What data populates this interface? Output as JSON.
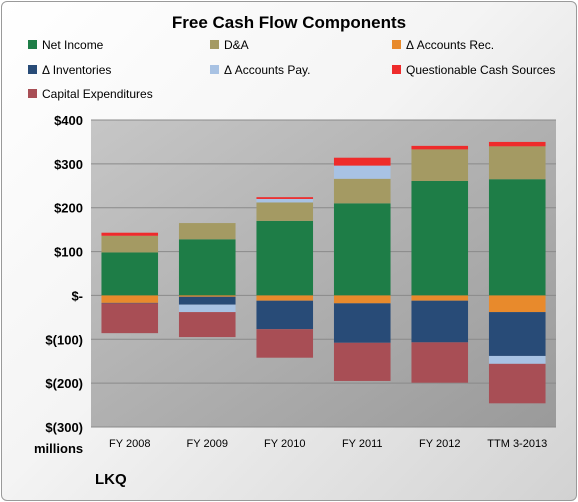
{
  "chart_data": {
    "type": "bar",
    "stacked": true,
    "title": "Free Cash Flow Components",
    "units_label": "millions",
    "footer": "LKQ",
    "categories": [
      "FY 2008",
      "FY 2009",
      "FY 2010",
      "FY 2011",
      "FY 2012",
      "TTM 3-2013"
    ],
    "ylim": [
      -300,
      400
    ],
    "yticks": [
      -300,
      -200,
      -100,
      0,
      100,
      200,
      300,
      400
    ],
    "ytick_labels": [
      "$(300)",
      "$(200)",
      "$(100)",
      "$-",
      "$100",
      "$200",
      "$300",
      "$400"
    ],
    "grid": true,
    "legend_position": "top",
    "series": [
      {
        "name": "Net Income",
        "color": "#1e7d47",
        "values": [
          98,
          128,
          170,
          210,
          261,
          265
        ]
      },
      {
        "name": "D&A",
        "color": "#a49a63",
        "values": [
          38,
          37,
          42,
          56,
          72,
          75
        ]
      },
      {
        "name": "Δ Accounts Rec.",
        "color": "#e88a2c",
        "values": [
          -17,
          -3,
          -12,
          -18,
          -12,
          -38
        ]
      },
      {
        "name": "Δ Inventories",
        "color": "#284b77",
        "values": [
          -1,
          -18,
          -65,
          -90,
          -95,
          -100
        ]
      },
      {
        "name": "Δ Accounts Pay.",
        "color": "#a8c2e3",
        "values": [
          0,
          -17,
          8,
          30,
          0,
          -18
        ]
      },
      {
        "name": "Questionable Cash Sources",
        "color": "#ee2b2b",
        "values": [
          7,
          0,
          4,
          18,
          8,
          10
        ]
      },
      {
        "name": "Capital Expenditures",
        "color": "#a84e55",
        "values": [
          -68,
          -57,
          -65,
          -87,
          -92,
          -90
        ]
      }
    ]
  }
}
